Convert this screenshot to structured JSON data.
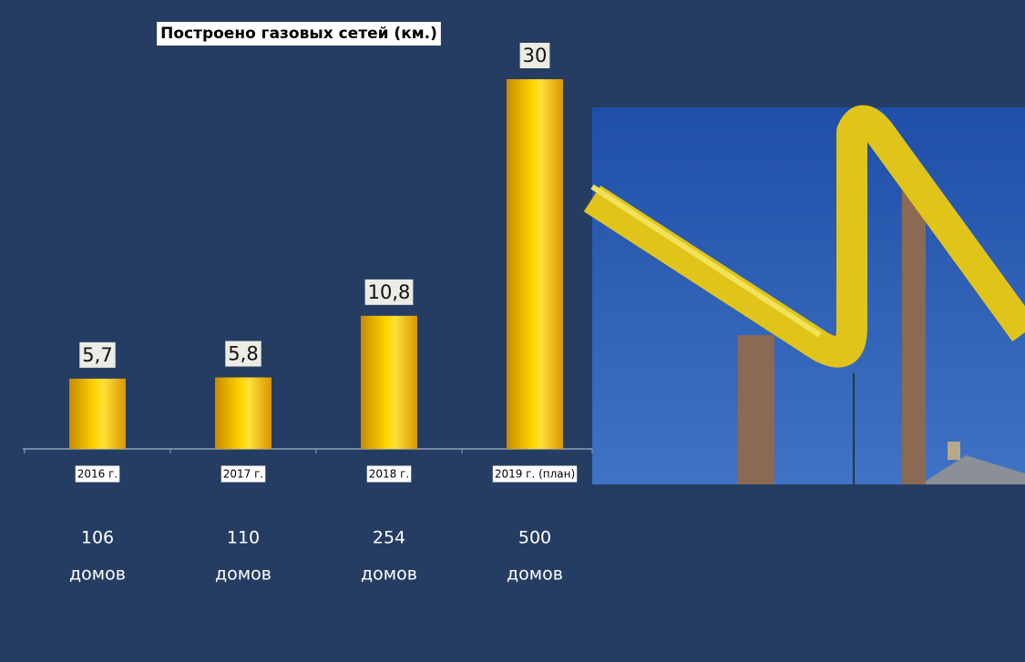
{
  "chart_data": {
    "type": "bar",
    "title": "Построено газовых  сетей (км.)",
    "categories": [
      "2016 г.",
      "2017 г.",
      "2018 г.",
      "2019 г. (план)"
    ],
    "values": [
      5.7,
      5.8,
      10.8,
      30
    ],
    "value_labels": [
      "5,7",
      "5,8",
      "10,8",
      "30"
    ],
    "color": "#ffc800",
    "ylim": [
      0,
      30
    ],
    "house_counts": [
      106,
      110,
      254,
      500
    ],
    "house_unit": "домов"
  }
}
